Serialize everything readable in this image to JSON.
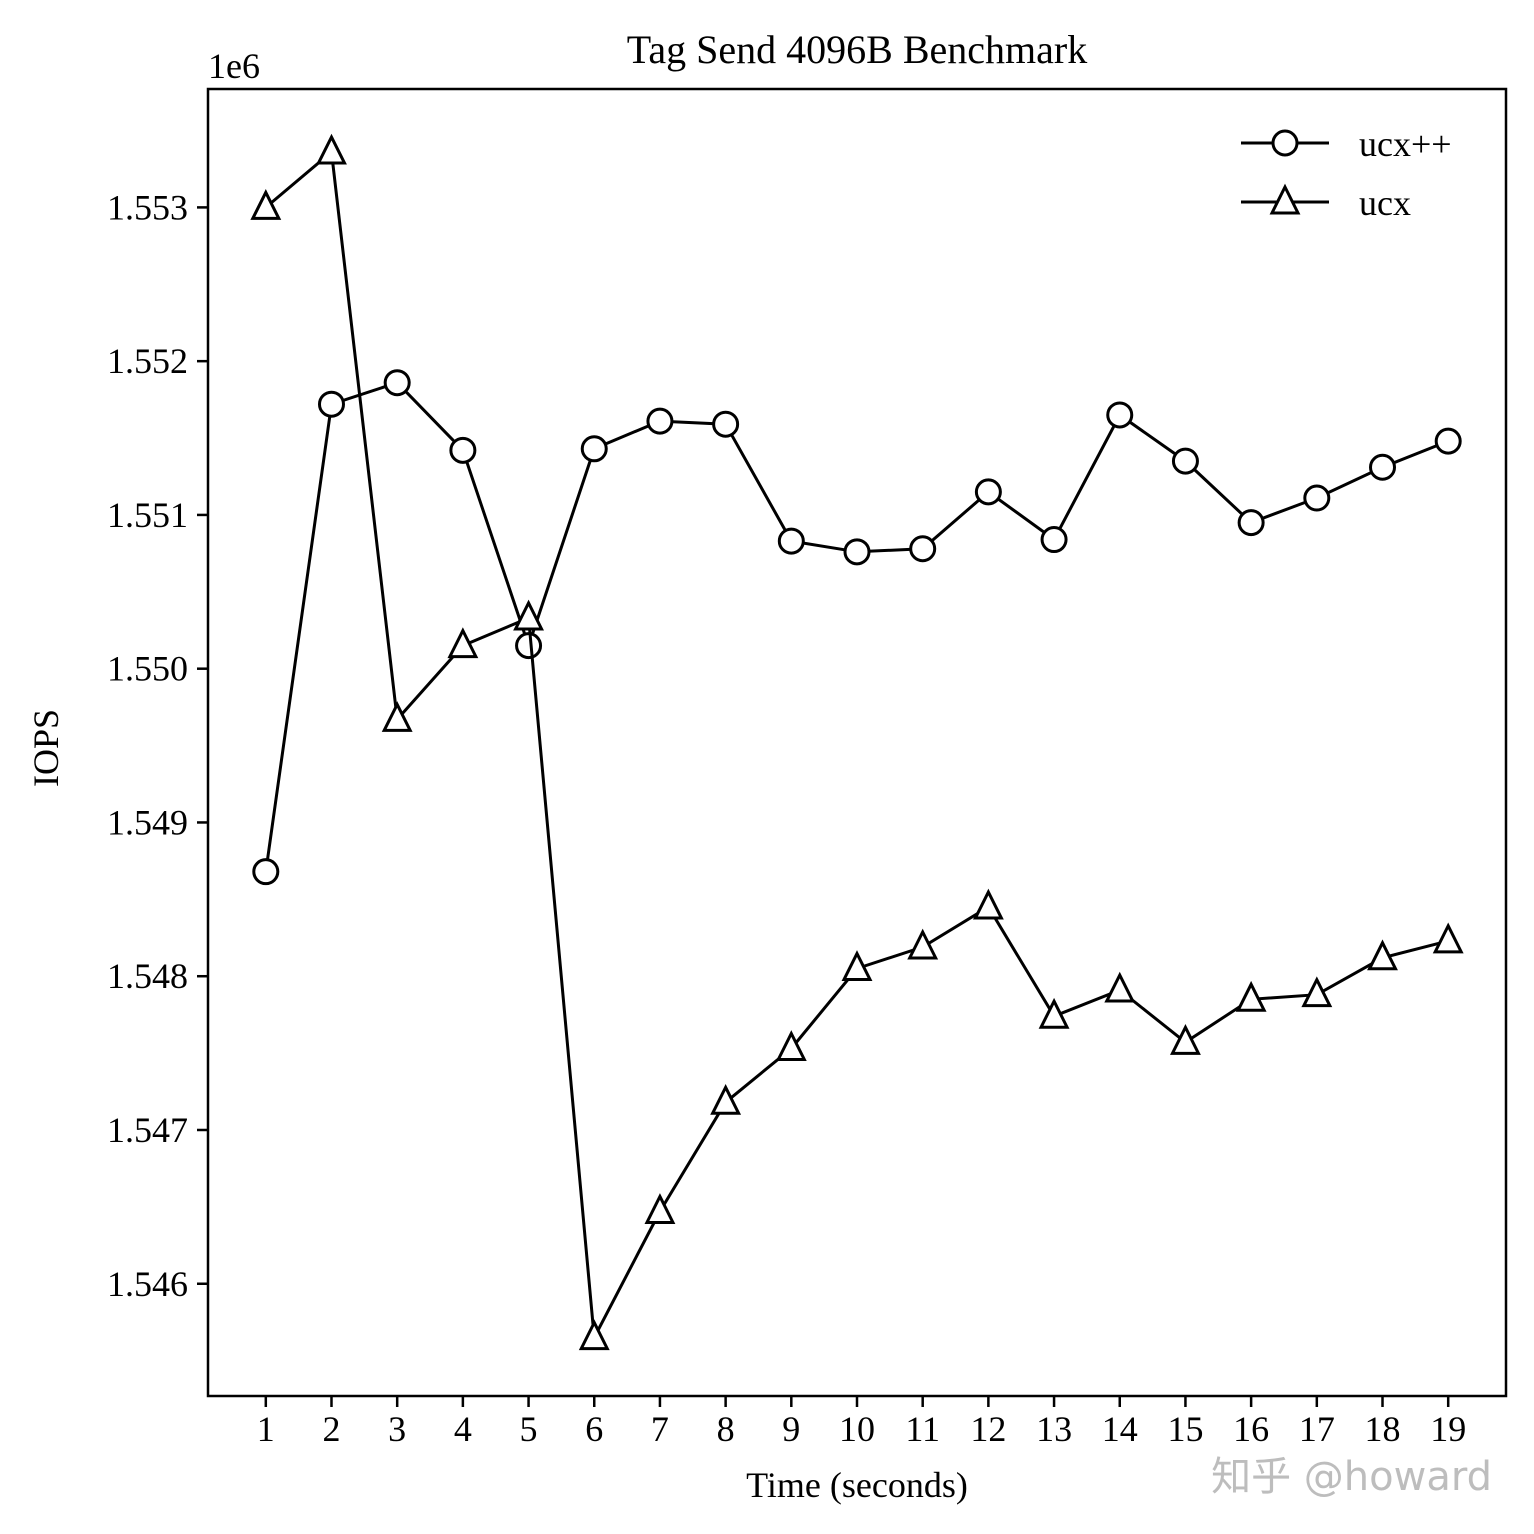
{
  "chart_data": {
    "type": "line",
    "title": "Tag Send 4096B Benchmark",
    "xlabel": "Time (seconds)",
    "ylabel": "IOPS",
    "y_offset_label": "1e6",
    "x": [
      1,
      2,
      3,
      4,
      5,
      6,
      7,
      8,
      9,
      10,
      11,
      12,
      13,
      14,
      15,
      16,
      17,
      18,
      19
    ],
    "x_tick_labels": [
      "1",
      "2",
      "3",
      "4",
      "5",
      "6",
      "7",
      "8",
      "9",
      "10",
      "11",
      "12",
      "13",
      "14",
      "15",
      "16",
      "17",
      "18",
      "19"
    ],
    "xlim": [
      0.12,
      19.88
    ],
    "ylim": [
      1545.27,
      1553.77
    ],
    "y_ticks": [
      1546,
      1547,
      1548,
      1549,
      1550,
      1551,
      1552,
      1553
    ],
    "y_tick_labels": [
      "1.546",
      "1.547",
      "1.548",
      "1.549",
      "1.550",
      "1.551",
      "1.552",
      "1.553"
    ],
    "series": [
      {
        "name": "ucx++",
        "marker": "circle",
        "color": "#000000",
        "values": [
          1548.68,
          1551.72,
          1551.86,
          1551.42,
          1550.15,
          1551.43,
          1551.61,
          1551.59,
          1550.83,
          1550.76,
          1550.78,
          1551.15,
          1550.84,
          1551.65,
          1551.35,
          1550.95,
          1551.11,
          1551.31,
          1551.48
        ]
      },
      {
        "name": "ucx",
        "marker": "triangle",
        "color": "#000000",
        "values": [
          1553.0,
          1553.36,
          1549.67,
          1550.15,
          1550.33,
          1545.65,
          1546.47,
          1547.18,
          1547.53,
          1548.05,
          1548.19,
          1548.45,
          1547.74,
          1547.91,
          1547.57,
          1547.85,
          1547.88,
          1548.12,
          1548.23
        ]
      }
    ],
    "legend_position": "top-right",
    "grid": false
  },
  "watermark": "知乎 @howard"
}
